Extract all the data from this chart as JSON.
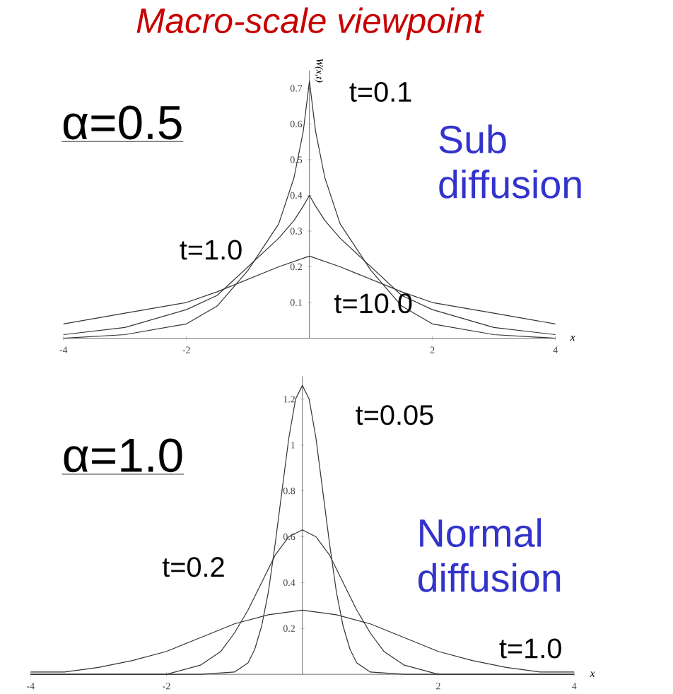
{
  "chart_data": [
    {
      "type": "line",
      "title": "Macro-scale viewpoint",
      "xlabel": "x",
      "ylabel": "W(x,t)",
      "xlim": [
        -4,
        4
      ],
      "ylim": [
        0,
        0.75
      ],
      "xticks": [
        -4,
        -2,
        2,
        4
      ],
      "yticks": [
        0.1,
        0.2,
        0.3,
        0.4,
        0.5,
        0.6,
        0.7
      ],
      "marker": "none",
      "series": [
        {
          "color": "#333333",
          "x": [
            -4,
            -3,
            -2,
            -1.5,
            -1,
            -0.5,
            -0.25,
            -0.1,
            0,
            0.1,
            0.25,
            0.5,
            1,
            1.5,
            2,
            3,
            4
          ],
          "values": [
            0.0,
            0.01,
            0.04,
            0.09,
            0.19,
            0.32,
            0.45,
            0.58,
            0.72,
            0.58,
            0.45,
            0.32,
            0.19,
            0.09,
            0.04,
            0.01,
            0.0
          ]
        },
        {
          "color": "#333333",
          "x": [
            -4,
            -3,
            -2,
            -1.5,
            -1,
            -0.5,
            -0.25,
            -0.1,
            0,
            0.1,
            0.25,
            0.5,
            1,
            1.5,
            2,
            3,
            4
          ],
          "values": [
            0.01,
            0.03,
            0.08,
            0.12,
            0.2,
            0.28,
            0.33,
            0.37,
            0.4,
            0.37,
            0.33,
            0.28,
            0.2,
            0.12,
            0.08,
            0.03,
            0.01
          ]
        },
        {
          "color": "#333333",
          "x": [
            -4,
            -3,
            -2,
            -1.5,
            -1,
            -0.5,
            0,
            0.5,
            1,
            1.5,
            2,
            3,
            4
          ],
          "values": [
            0.04,
            0.07,
            0.1,
            0.13,
            0.165,
            0.2,
            0.23,
            0.2,
            0.165,
            0.13,
            0.1,
            0.07,
            0.04
          ]
        }
      ],
      "annotations": [
        "α=0.5",
        "Sub diffusion",
        "t=0.1",
        "t=1.0",
        "t=10.0"
      ]
    },
    {
      "type": "line",
      "xlabel": "x",
      "xlim": [
        -4,
        4
      ],
      "ylim": [
        0,
        1.3
      ],
      "xticks": [
        -4,
        -2,
        2,
        4
      ],
      "yticks": [
        0.2,
        0.4,
        0.6,
        0.8,
        1,
        1.2
      ],
      "marker": "none",
      "series": [
        {
          "color": "#333333",
          "x": [
            -4,
            -1.5,
            -1,
            -0.8,
            -0.7,
            -0.6,
            -0.5,
            -0.4,
            -0.3,
            -0.2,
            -0.1,
            0,
            0.1,
            0.2,
            0.3,
            0.4,
            0.5,
            0.6,
            0.7,
            0.8,
            1,
            1.5,
            4
          ],
          "values": [
            0,
            0,
            0.01,
            0.05,
            0.11,
            0.21,
            0.36,
            0.57,
            0.8,
            1.03,
            1.2,
            1.26,
            1.2,
            1.03,
            0.8,
            0.57,
            0.36,
            0.21,
            0.11,
            0.05,
            0.01,
            0,
            0
          ]
        },
        {
          "color": "#333333",
          "x": [
            -4,
            -2,
            -1.5,
            -1.2,
            -1,
            -0.8,
            -0.6,
            -0.4,
            -0.2,
            0,
            0.2,
            0.4,
            0.6,
            0.8,
            1,
            1.2,
            1.5,
            2,
            4
          ],
          "values": [
            0,
            0,
            0.04,
            0.1,
            0.18,
            0.28,
            0.4,
            0.52,
            0.6,
            0.63,
            0.6,
            0.52,
            0.4,
            0.28,
            0.18,
            0.1,
            0.04,
            0,
            0
          ]
        },
        {
          "color": "#333333",
          "x": [
            -4,
            -3.5,
            -3,
            -2.5,
            -2,
            -1.5,
            -1,
            -0.5,
            0,
            0.5,
            1,
            1.5,
            2,
            2.5,
            3,
            3.5,
            4
          ],
          "values": [
            0.01,
            0.01,
            0.03,
            0.06,
            0.1,
            0.16,
            0.22,
            0.26,
            0.28,
            0.26,
            0.22,
            0.16,
            0.1,
            0.06,
            0.03,
            0.01,
            0.01
          ]
        }
      ],
      "annotations": [
        "α=1.0",
        "Normal diffusion",
        "t=0.05",
        "t=0.2",
        "t=1.0"
      ]
    }
  ]
}
